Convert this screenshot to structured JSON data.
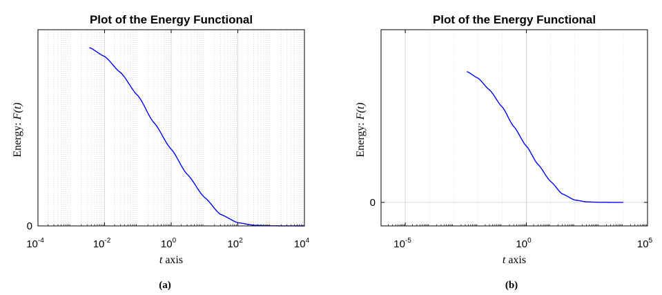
{
  "chart_data": [
    {
      "type": "line",
      "title": "Plot of the Energy Functional",
      "xlabel_var": "t",
      "xlabel_rest": " axis",
      "ylabel_rest": "Energy: ",
      "ylabel_var": "F(t)",
      "xscale": "log",
      "xlim": [
        0.0001,
        10000
      ],
      "x_ticks": [
        {
          "base": "10",
          "exp": "-4",
          "v": 0.0001
        },
        {
          "base": "10",
          "exp": "-2",
          "v": 0.01
        },
        {
          "base": "10",
          "exp": "0",
          "v": 1
        },
        {
          "base": "10",
          "exp": "2",
          "v": 100
        },
        {
          "base": "10",
          "exp": "4",
          "v": 10000
        }
      ],
      "y_ticks": [
        {
          "label": "0",
          "v": 0
        }
      ],
      "ylim": [
        0,
        1.1
      ],
      "grid": true,
      "minor_grid": true,
      "series": [
        {
          "color": "#0000ff",
          "x": [
            0.0035,
            0.01,
            0.03,
            0.1,
            0.3,
            1,
            3,
            10,
            30,
            100,
            300,
            1000,
            3000,
            10000
          ],
          "y": [
            1.0,
            0.95,
            0.86,
            0.73,
            0.58,
            0.43,
            0.29,
            0.16,
            0.065,
            0.018,
            0.004,
            0.0008,
            0.0001,
            0.0
          ]
        }
      ],
      "caption": "(a)"
    },
    {
      "type": "line",
      "title": "Plot of the Energy Functional",
      "xlabel_var": "t",
      "xlabel_rest": " axis",
      "ylabel_rest": "Energy: ",
      "ylabel_var": "F(t)",
      "xscale": "log",
      "xlim": [
        1e-06,
        100000
      ],
      "x_ticks": [
        {
          "base": "10",
          "exp": "-5",
          "v": 1e-05
        },
        {
          "base": "10",
          "exp": "0",
          "v": 1
        },
        {
          "base": "10",
          "exp": "5",
          "v": 100000
        }
      ],
      "y_ticks": [
        {
          "label": "0",
          "v": 0
        }
      ],
      "ylim": [
        -0.18,
        1.32
      ],
      "grid": true,
      "minor_grid": false,
      "series": [
        {
          "color": "#0000ff",
          "x": [
            0.0035,
            0.01,
            0.03,
            0.1,
            0.3,
            1,
            3,
            10,
            30,
            100,
            300,
            1000,
            3000,
            10000
          ],
          "y": [
            1.0,
            0.95,
            0.86,
            0.73,
            0.58,
            0.43,
            0.29,
            0.16,
            0.065,
            0.018,
            0.004,
            0.0008,
            0.0001,
            0.0
          ]
        }
      ],
      "caption": "(b)"
    }
  ]
}
